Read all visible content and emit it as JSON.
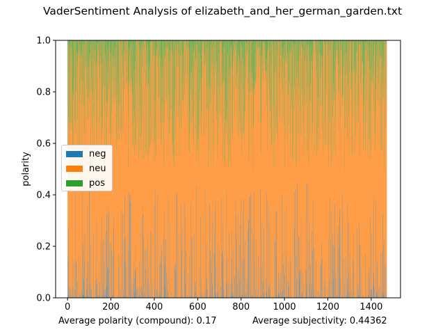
{
  "title": "VaderSentiment Analysis of elizabeth_and_her_german_garden.txt",
  "footer": {
    "left": "Average polarity (compound): 0.17",
    "right": "Average subjectivity: 0.44362"
  },
  "chart_data": {
    "type": "bar",
    "stacked": true,
    "title": "VaderSentiment Analysis of elizabeth_and_her_german_garden.txt",
    "xlabel": "",
    "ylabel": "polarity",
    "xlim": [
      -55,
      1535
    ],
    "ylim": [
      0,
      1.0
    ],
    "xticks": [
      0,
      200,
      400,
      600,
      800,
      1000,
      1200,
      1400
    ],
    "yticks": [
      0.0,
      0.2,
      0.4,
      0.6,
      0.8,
      1.0
    ],
    "x_count": 1472,
    "legend_placement": "center-left",
    "grid": false,
    "series": [
      {
        "name": "neg",
        "color": "#1f77b4"
      },
      {
        "name": "neu",
        "color": "#ff7f0e"
      },
      {
        "name": "pos",
        "color": "#2ca02c"
      }
    ]
  }
}
